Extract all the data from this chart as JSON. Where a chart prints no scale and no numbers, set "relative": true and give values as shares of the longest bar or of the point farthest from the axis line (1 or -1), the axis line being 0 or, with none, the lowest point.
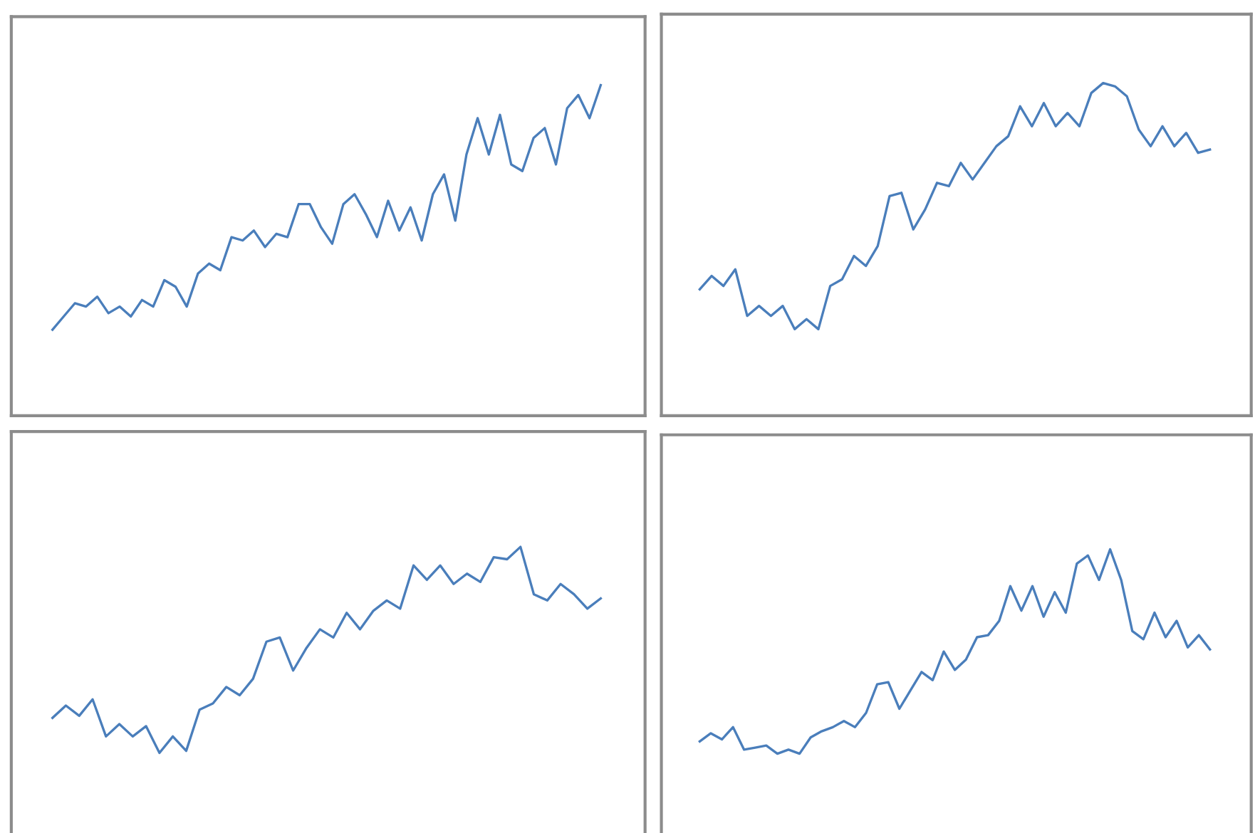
{
  "chart_data": [
    {
      "type": "line",
      "relative": true,
      "categories": [
        null,
        null,
        null,
        null,
        null,
        null,
        null,
        null,
        null,
        null,
        null,
        null,
        null,
        null,
        null,
        null,
        null,
        null,
        null,
        null,
        null,
        null,
        null,
        null,
        null,
        null,
        null,
        null,
        null,
        null,
        null,
        null,
        null,
        null,
        null,
        null,
        null,
        null,
        null,
        null,
        null,
        null,
        null,
        null,
        null,
        null,
        null,
        null,
        null,
        null
      ],
      "series": [
        {
          "color": "#4a7ebb",
          "values": [
            0.26,
            0.3,
            0.34,
            0.33,
            0.36,
            0.31,
            0.33,
            0.3,
            0.35,
            0.33,
            0.41,
            0.39,
            0.33,
            0.43,
            0.46,
            0.44,
            0.54,
            0.53,
            0.56,
            0.51,
            0.55,
            0.54,
            0.64,
            0.64,
            0.57,
            0.52,
            0.64,
            0.67,
            0.61,
            0.54,
            0.65,
            0.56,
            0.63,
            0.53,
            0.67,
            0.73,
            0.59,
            0.79,
            0.9,
            0.79,
            0.91,
            0.76,
            0.74,
            0.84,
            0.87,
            0.76,
            0.93,
            0.97,
            0.9,
            1.0
          ]
        }
      ]
    },
    {
      "type": "line",
      "relative": true,
      "categories": [
        null,
        null,
        null,
        null,
        null,
        null,
        null,
        null,
        null,
        null,
        null,
        null,
        null,
        null,
        null,
        null,
        null,
        null,
        null,
        null,
        null,
        null,
        null,
        null,
        null,
        null,
        null,
        null,
        null,
        null,
        null,
        null,
        null,
        null,
        null,
        null,
        null,
        null,
        null,
        null,
        null,
        null,
        null,
        null
      ],
      "series": [
        {
          "color": "#4a7ebb",
          "values": [
            0.38,
            0.42,
            0.39,
            0.44,
            0.3,
            0.33,
            0.3,
            0.33,
            0.26,
            0.29,
            0.26,
            0.39,
            0.41,
            0.48,
            0.45,
            0.51,
            0.66,
            0.67,
            0.56,
            0.62,
            0.7,
            0.69,
            0.76,
            0.71,
            0.76,
            0.81,
            0.84,
            0.93,
            0.87,
            0.94,
            0.87,
            0.91,
            0.87,
            0.97,
            1.0,
            0.99,
            0.96,
            0.86,
            0.81,
            0.87,
            0.81,
            0.85,
            0.79,
            0.8
          ]
        }
      ]
    },
    {
      "type": "line",
      "relative": true,
      "categories": [
        null,
        null,
        null,
        null,
        null,
        null,
        null,
        null,
        null,
        null,
        null,
        null,
        null,
        null,
        null,
        null,
        null,
        null,
        null,
        null,
        null,
        null,
        null,
        null,
        null,
        null,
        null,
        null,
        null,
        null,
        null,
        null,
        null,
        null,
        null,
        null,
        null,
        null,
        null,
        null,
        null,
        null
      ],
      "series": [
        {
          "color": "#4a7ebb",
          "values": [
            0.17,
            0.23,
            0.18,
            0.26,
            0.08,
            0.14,
            0.08,
            0.13,
            0.0,
            0.08,
            0.01,
            0.21,
            0.24,
            0.32,
            0.28,
            0.36,
            0.54,
            0.56,
            0.4,
            0.51,
            0.6,
            0.56,
            0.68,
            0.6,
            0.69,
            0.74,
            0.7,
            0.91,
            0.84,
            0.91,
            0.82,
            0.87,
            0.83,
            0.95,
            0.94,
            1.0,
            0.77,
            0.74,
            0.82,
            0.77,
            0.7,
            0.75
          ]
        }
      ]
    },
    {
      "type": "line",
      "relative": true,
      "categories": [
        null,
        null,
        null,
        null,
        null,
        null,
        null,
        null,
        null,
        null,
        null,
        null,
        null,
        null,
        null,
        null,
        null,
        null,
        null,
        null,
        null,
        null,
        null,
        null,
        null,
        null,
        null,
        null,
        null,
        null,
        null,
        null,
        null,
        null,
        null,
        null,
        null,
        null,
        null,
        null,
        null,
        null,
        null,
        null,
        null,
        null,
        null
      ],
      "series": [
        {
          "color": "#4a7ebb",
          "values": [
            0.06,
            0.1,
            0.07,
            0.13,
            0.02,
            0.03,
            0.04,
            0.0,
            0.02,
            0.0,
            0.08,
            0.11,
            0.13,
            0.16,
            0.13,
            0.2,
            0.34,
            0.35,
            0.22,
            0.31,
            0.4,
            0.36,
            0.5,
            0.41,
            0.46,
            0.57,
            0.58,
            0.65,
            0.82,
            0.7,
            0.82,
            0.67,
            0.79,
            0.69,
            0.93,
            0.97,
            0.85,
            1.0,
            0.85,
            0.6,
            0.56,
            0.69,
            0.57,
            0.65,
            0.52,
            0.58,
            0.51
          ]
        }
      ]
    }
  ]
}
